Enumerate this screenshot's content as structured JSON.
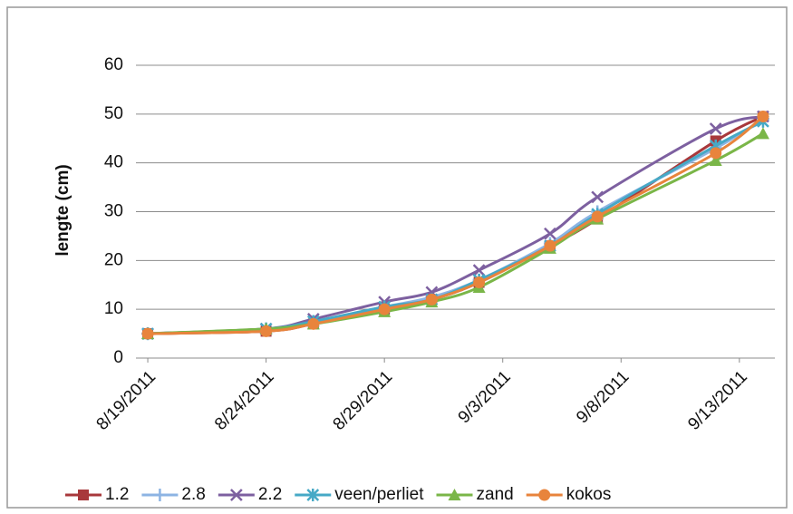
{
  "chart_data": {
    "type": "line",
    "y_label": "lengte (cm)",
    "x": [
      "2011-08-19",
      "2011-08-24",
      "2011-08-26",
      "2011-08-29",
      "2011-08-31",
      "2011-09-02",
      "2011-09-05",
      "2011-09-07",
      "2011-09-12",
      "2011-09-14"
    ],
    "xlim": [
      "2011-08-19",
      "2011-09-14"
    ],
    "xticks": [
      {
        "value": "2011-08-19",
        "label": "8/19/2011"
      },
      {
        "value": "2011-08-24",
        "label": "8/24/2011"
      },
      {
        "value": "2011-08-29",
        "label": "8/29/2011"
      },
      {
        "value": "2011-09-03",
        "label": "9/3/2011"
      },
      {
        "value": "2011-09-08",
        "label": "9/8/2011"
      },
      {
        "value": "2011-09-13",
        "label": "9/13/2011"
      }
    ],
    "ylim": [
      0,
      60
    ],
    "yticks": [
      0,
      10,
      20,
      30,
      40,
      50,
      60
    ],
    "grid": true,
    "legend": "bottom",
    "smooth": true,
    "series": [
      {
        "name": "1.2",
        "color": "#a8383b",
        "marker": "square",
        "values": [
          5,
          5.5,
          7,
          10,
          12,
          15.5,
          23,
          28.5,
          44.5,
          49.5
        ]
      },
      {
        "name": "2.8",
        "color": "#8db4e3",
        "marker": "plus",
        "values": [
          5,
          6,
          7.5,
          10.5,
          12.5,
          16,
          23.5,
          30,
          43,
          49
        ]
      },
      {
        "name": "2.2",
        "color": "#7d60a0",
        "marker": "cross",
        "values": [
          5,
          6,
          8,
          11.5,
          13.5,
          18,
          25.5,
          33,
          47,
          49.5
        ]
      },
      {
        "name": "veen/perliet",
        "color": "#46a9c6",
        "marker": "star",
        "values": [
          5,
          6,
          7.5,
          10.5,
          12,
          16,
          23,
          29.5,
          43.5,
          48.5
        ]
      },
      {
        "name": "zand",
        "color": "#7ab648",
        "marker": "triangle",
        "values": [
          5,
          6,
          7,
          9.5,
          11.5,
          14.5,
          22.5,
          28.5,
          40.5,
          46
        ]
      },
      {
        "name": "kokos",
        "color": "#e8843c",
        "marker": "circle",
        "values": [
          5,
          5.5,
          7,
          10,
          12,
          15.5,
          23,
          29,
          42,
          49.5
        ]
      }
    ]
  }
}
